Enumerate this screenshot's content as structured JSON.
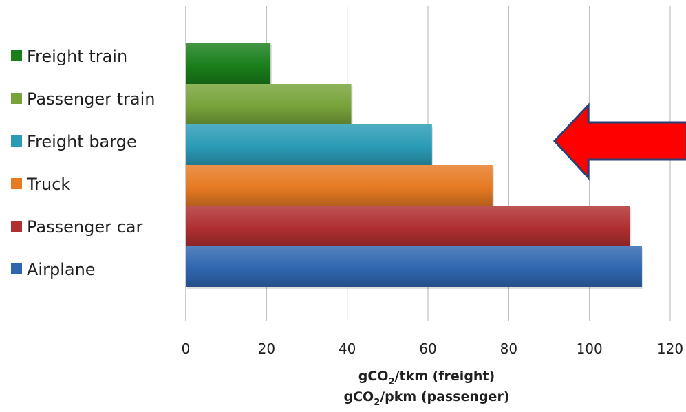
{
  "chart_data": {
    "type": "bar",
    "orientation": "horizontal",
    "title": "",
    "categories": [
      "Freight train",
      "Passenger train",
      "Freight barge",
      "Truck",
      "Passenger car",
      "Airplane"
    ],
    "values": [
      21,
      41,
      61,
      76,
      110,
      113
    ],
    "colors": [
      "#1a7f1a",
      "#77a33a",
      "#2a9bb6",
      "#e77a23",
      "#b02f31",
      "#2f66b0"
    ],
    "xlim": [
      0,
      120
    ],
    "xticks": [
      0,
      20,
      40,
      60,
      80,
      100,
      120
    ],
    "xlabel_lines": [
      {
        "pre": "gCO",
        "sub": "2",
        "post": "/tkm (freight)"
      },
      {
        "pre": "gCO",
        "sub": "2",
        "post": "/pkm (passenger)"
      }
    ],
    "grid": "vertical",
    "legend_position": "left",
    "annotation": {
      "type": "arrow",
      "direction": "left",
      "color": "#ff0000",
      "outline": "#2c3f74"
    }
  }
}
